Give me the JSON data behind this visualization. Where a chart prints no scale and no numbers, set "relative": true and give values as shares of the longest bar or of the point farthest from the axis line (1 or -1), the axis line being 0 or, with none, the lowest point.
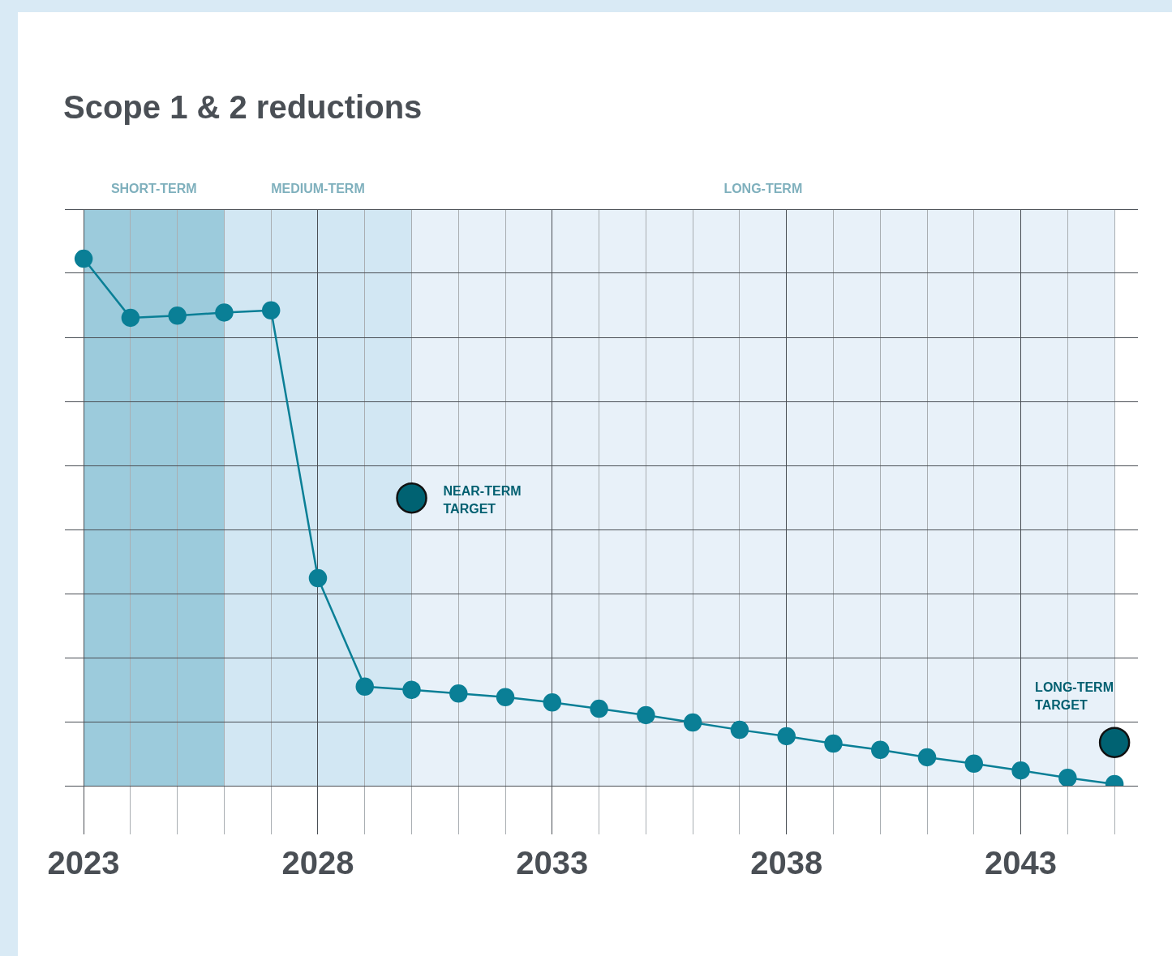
{
  "chart_data": {
    "type": "line",
    "title": "Scope 1 & 2 reductions",
    "relative": true,
    "x": [
      2023,
      2024,
      2025,
      2026,
      2027,
      2028,
      2029,
      2030,
      2031,
      2032,
      2033,
      2034,
      2035,
      2036,
      2037,
      2038,
      2039,
      2040,
      2041,
      2042,
      2043,
      2044,
      2045
    ],
    "series": [
      {
        "color": "#0a7f96",
        "values": [
          1,
          0.888,
          0.892,
          0.898,
          0.902,
          0.394,
          0.188,
          0.182,
          0.175,
          0.168,
          0.158,
          0.146,
          0.134,
          0.12,
          0.106,
          0.094,
          0.08,
          0.068,
          0.054,
          0.042,
          0.029,
          0.015,
          0.003
        ]
      },
      {
        "type": "scatter",
        "color": "#006272",
        "x": [
          2030
        ],
        "values": [
          0.546
        ]
      },
      {
        "type": "scatter",
        "color": "#006272",
        "x": [
          2045
        ],
        "values": [
          0.082
        ]
      }
    ],
    "xlim": [
      2022.6,
      2045.5
    ],
    "xticks": [
      2023,
      {
        "value": 2024,
        "label": null
      },
      {
        "value": 2025,
        "label": null
      },
      {
        "value": 2026,
        "label": null
      },
      {
        "value": 2027,
        "label": null
      },
      2028,
      {
        "value": 2029,
        "label": null
      },
      {
        "value": 2030,
        "label": null
      },
      {
        "value": 2031,
        "label": null
      },
      {
        "value": 2032,
        "label": null
      },
      2033,
      {
        "value": 2034,
        "label": null
      },
      {
        "value": 2035,
        "label": null
      },
      {
        "value": 2036,
        "label": null
      },
      {
        "value": 2037,
        "label": null
      },
      2038,
      {
        "value": 2039,
        "label": null
      },
      {
        "value": 2040,
        "label": null
      },
      {
        "value": 2041,
        "label": null
      },
      {
        "value": 2042,
        "label": null
      },
      2043,
      {
        "value": 2044,
        "label": null
      },
      {
        "value": 2045,
        "label": null
      }
    ],
    "bands": [
      {
        "axis": "x",
        "from": 2023,
        "to": 2026,
        "label": "SHORT-TERM",
        "color": "#9ccbdc"
      },
      {
        "axis": "x",
        "from": 2026,
        "to": 2030,
        "label": "MEDIUM-TERM",
        "color": "#d2e7f3"
      },
      {
        "axis": "x",
        "from": 2030,
        "to": 2045,
        "label": "LONG-TERM",
        "color": "#e8f1f9"
      }
    ],
    "annotations": [
      {
        "text": "NEAR-TERM TARGET",
        "x": 2030,
        "y": 0.546
      },
      {
        "text": "LONG-TERM TARGET",
        "x": 2045,
        "y": 0.082
      }
    ],
    "grid": true,
    "legend": false,
    "marker": "circle",
    "line_style": "solid",
    "tick_labels": "x"
  }
}
